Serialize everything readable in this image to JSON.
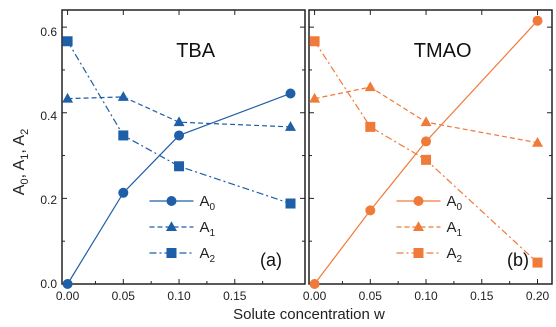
{
  "figure": {
    "ylabel_parts": [
      {
        "t": "A",
        "sub": "0"
      },
      {
        "t": ", A",
        "sub": "1"
      },
      {
        "t": ", A",
        "sub": "2"
      }
    ],
    "xlabel": "Solute concentration w",
    "y_ticks": [
      "0.0",
      "0.2",
      "0.4",
      "0.6"
    ]
  },
  "chart_data": [
    {
      "type": "line",
      "title": "TBA",
      "panel_label": "(a)",
      "color": "#1f5fa8",
      "xlabel": "Solute concentration w",
      "ylabel": "A0, A1, A2",
      "xlim": [
        -0.005,
        0.213
      ],
      "ylim": [
        0.0,
        0.64
      ],
      "x_ticks": [
        "0.00",
        "0.05",
        "0.10",
        "0.15"
      ],
      "x_tick_values": [
        0.0,
        0.05,
        0.1,
        0.15
      ],
      "legend": {
        "placement": "bottom-center"
      },
      "series": [
        {
          "name": "A",
          "sub": "0",
          "marker": "circle",
          "dash": "solid",
          "x": [
            0.0,
            0.05,
            0.1,
            0.2
          ],
          "y": [
            0.0,
            0.213,
            0.347,
            0.445
          ]
        },
        {
          "name": "A",
          "sub": "1",
          "marker": "triangle",
          "dash": "dashed",
          "x": [
            0.0,
            0.05,
            0.1,
            0.2
          ],
          "y": [
            0.433,
            0.437,
            0.378,
            0.367
          ]
        },
        {
          "name": "A",
          "sub": "2",
          "marker": "square",
          "dash": "dashdot",
          "x": [
            0.0,
            0.05,
            0.1,
            0.2
          ],
          "y": [
            0.567,
            0.347,
            0.275,
            0.188
          ]
        }
      ]
    },
    {
      "type": "line",
      "title": "TMAO",
      "panel_label": "(b)",
      "color": "#f07a3a",
      "xlabel": "Solute concentration w",
      "ylabel": "A0, A1, A2",
      "xlim": [
        -0.005,
        0.213
      ],
      "ylim": [
        0.0,
        0.64
      ],
      "x_ticks": [
        "0.00",
        "0.05",
        "0.10",
        "0.15",
        "0.20"
      ],
      "x_tick_values": [
        0.0,
        0.05,
        0.1,
        0.15,
        0.2
      ],
      "legend": {
        "placement": "bottom-center"
      },
      "series": [
        {
          "name": "A",
          "sub": "0",
          "marker": "circle",
          "dash": "solid",
          "x": [
            0.0,
            0.05,
            0.1,
            0.2
          ],
          "y": [
            0.0,
            0.172,
            0.333,
            0.615
          ]
        },
        {
          "name": "A",
          "sub": "1",
          "marker": "triangle",
          "dash": "dashed",
          "x": [
            0.0,
            0.05,
            0.1,
            0.2
          ],
          "y": [
            0.433,
            0.46,
            0.378,
            0.33
          ]
        },
        {
          "name": "A",
          "sub": "2",
          "marker": "square",
          "dash": "dashdot",
          "x": [
            0.0,
            0.05,
            0.1,
            0.2
          ],
          "y": [
            0.567,
            0.367,
            0.29,
            0.05
          ]
        }
      ]
    }
  ]
}
